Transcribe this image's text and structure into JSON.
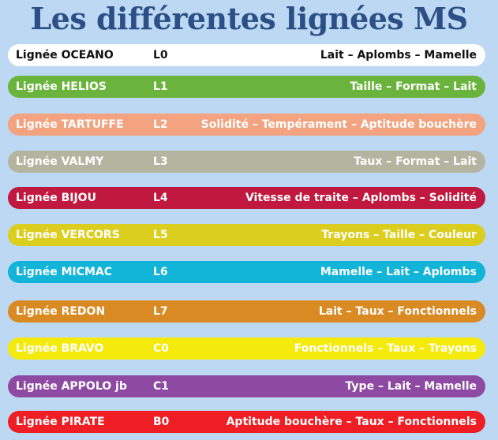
{
  "title": "Les différentes lignées MS",
  "rows": [
    {
      "name": "Lignée OCEANO",
      "code": "L0",
      "traits": "Lait – Aplombs – Mamelle",
      "bg": "#ffffff",
      "fg": "#111111"
    },
    {
      "name": "Lignée  HELIOS",
      "code": "L1",
      "traits": "Taille – Format – Lait",
      "bg": "#6ab43e",
      "fg": "#ffffff"
    },
    {
      "name": "Lignée  TARTUFFE",
      "code": "L2",
      "traits": "Solidité – Tempérament – Aptitude bouchère",
      "bg": "#f3a380",
      "fg": "#ffffff"
    },
    {
      "name": "Lignée  VALMY",
      "code": "L3",
      "traits": "Taux – Format – Lait",
      "bg": "#b4b4a0",
      "fg": "#ffffff"
    },
    {
      "name": "Lignée  BIJOU",
      "code": "L4",
      "traits": "Vitesse de traite – Aplombs – Solidité",
      "bg": "#c0183e",
      "fg": "#ffffff"
    },
    {
      "name": "Lignée VERCORS",
      "code": "L5",
      "traits": "Trayons – Taille – Couleur",
      "bg": "#dcce1e",
      "fg": "#ffffff"
    },
    {
      "name": "Lignée  MICMAC",
      "code": "L6",
      "traits": "Mamelle – Lait – Aplombs",
      "bg": "#12b4d8",
      "fg": "#ffffff"
    },
    {
      "name": "Lignée  REDON",
      "code": "L7",
      "traits": "Lait – Taux – Fonctionnels",
      "bg": "#da8a22",
      "fg": "#ffffff"
    },
    {
      "name": "Lignée  BRAVO",
      "code": "C0",
      "traits": "Fonctionnels – Taux – Trayons",
      "bg": "#f4ea0c",
      "fg": "#ffffff"
    },
    {
      "name": "Lignée  APPOLO jb",
      "code": "C1",
      "traits": "Type – Lait – Mamelle",
      "bg": "#8e4aa2",
      "fg": "#ffffff"
    },
    {
      "name": "Lignée  PIRATE",
      "code": "B0",
      "traits": "Aptitude bouchère  – Taux – Fonctionnels",
      "bg": "#ee1e24",
      "fg": "#ffffff"
    }
  ]
}
